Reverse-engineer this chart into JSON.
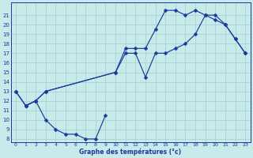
{
  "xlabel": "Graphe des températures (°c)",
  "background_color": "#c8eaea",
  "grid_color": "#a8d4d4",
  "line_color": "#1a3a9c",
  "ylim_min": 8,
  "ylim_max": 22,
  "xlim_min": -0.5,
  "xlim_max": 23.5,
  "yticks": [
    8,
    9,
    10,
    11,
    12,
    13,
    14,
    15,
    16,
    17,
    18,
    19,
    20,
    21
  ],
  "xticks": [
    0,
    1,
    2,
    3,
    4,
    5,
    6,
    7,
    8,
    9,
    10,
    11,
    12,
    13,
    14,
    15,
    16,
    17,
    18,
    19,
    20,
    21,
    22,
    23
  ],
  "curve_low_x": [
    1,
    2,
    3,
    4,
    5,
    6,
    7,
    8,
    9
  ],
  "curve_low_y": [
    11.5,
    12,
    10,
    9,
    8.5,
    8.5,
    8,
    8,
    10.5
  ],
  "curve_mid_x": [
    0,
    1,
    2,
    3,
    10,
    11,
    12,
    13,
    14,
    15,
    16,
    17,
    18,
    19,
    20,
    21,
    22,
    23
  ],
  "curve_mid_y": [
    13,
    11.5,
    12,
    13,
    15,
    17,
    17,
    14.5,
    17,
    17,
    17.5,
    18,
    19,
    21,
    21,
    20,
    18.5,
    17
  ],
  "curve_top_x": [
    0,
    1,
    2,
    3,
    10,
    11,
    12,
    13,
    14,
    15,
    16,
    17,
    18,
    19,
    20,
    21,
    22,
    23
  ],
  "curve_top_y": [
    13,
    11.5,
    12,
    13,
    15,
    17.5,
    17.5,
    17.5,
    19.5,
    21.5,
    21.5,
    21,
    21.5,
    21,
    20.5,
    20,
    18.5,
    17
  ]
}
